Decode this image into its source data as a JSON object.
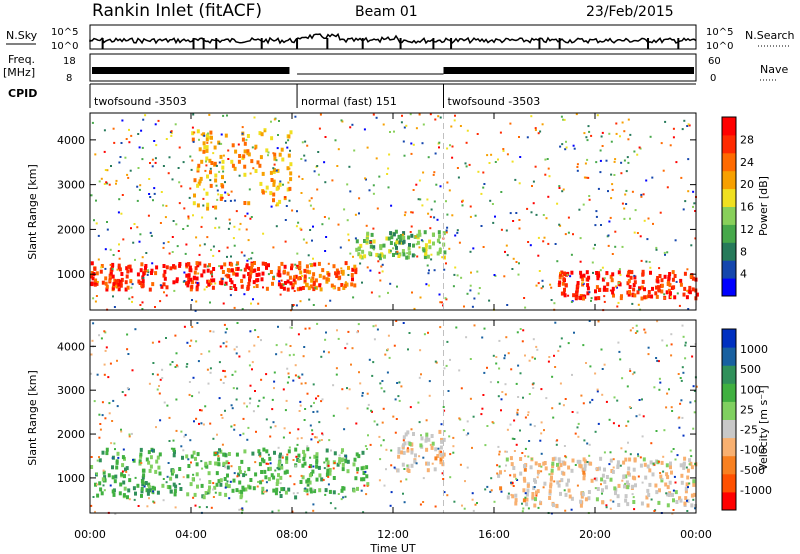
{
  "header": {
    "station": "Rankin Inlet (fitACF)",
    "beam": "Beam 01",
    "date": "23/Feb/2015"
  },
  "summary_panels": {
    "nsky_label": "N.Sky",
    "nsky_ticks": [
      "10^5",
      "10^0"
    ],
    "nsearch_label": "N.Search",
    "nsearch_ticks": [
      "10^5",
      "10^0"
    ],
    "freq_label_1": "Freq.",
    "freq_label_2": "[MHz]",
    "freq_ticks": [
      "18",
      "8"
    ],
    "nave_label": "Nave",
    "nave_ticks": [
      "60",
      "0"
    ],
    "cpid_label": "CPID",
    "cpid_segments": [
      {
        "name": "twofsound",
        "id": "-3503",
        "start": 0,
        "end": 8.2
      },
      {
        "name": "normal (fast)",
        "id": "151",
        "start": 8.2,
        "end": 14.0
      },
      {
        "name": "twofsound",
        "id": "-3503",
        "start": 14.0,
        "end": 24
      }
    ]
  },
  "chart_data": [
    {
      "type": "heatmap",
      "panel": "power",
      "title": "",
      "xlabel": "Time UT",
      "ylabel": "Slant Range [km]",
      "xlim": [
        0,
        24
      ],
      "ylim": [
        200,
        4600
      ],
      "yticks": [
        "1000",
        "2000",
        "3000",
        "4000"
      ],
      "colorbar": {
        "label": "Power [dB]",
        "ticks": [
          "28",
          "24",
          "20",
          "16",
          "12",
          "8",
          "4"
        ],
        "colors": [
          "#0000ff",
          "#1446ad",
          "#267a5a",
          "#46a84a",
          "#88d05a",
          "#f0e020",
          "#f7a000",
          "#ff6a00",
          "#ff2a00",
          "#ff0000"
        ]
      },
      "features": [
        {
          "range_km": [
            700,
            1300
          ],
          "time_ut": [
            0,
            8.2
          ],
          "level_db": 28
        },
        {
          "range_km": [
            700,
            1300
          ],
          "time_ut": [
            8.2,
            10.5
          ],
          "level_db": 24
        },
        {
          "range_km": [
            1400,
            2000
          ],
          "time_ut": [
            10.5,
            14.0
          ],
          "level_db": 12
        },
        {
          "range_km": [
            500,
            1100
          ],
          "time_ut": [
            18.5,
            24
          ],
          "level_db": 28
        },
        {
          "range_km": [
            2500,
            4300
          ],
          "time_ut": [
            4,
            8
          ],
          "level_db": 20
        }
      ]
    },
    {
      "type": "heatmap",
      "panel": "velocity",
      "title": "",
      "xlabel": "Time UT",
      "ylabel": "Slant Range [km]",
      "xlim": [
        0,
        24
      ],
      "ylim": [
        200,
        4600
      ],
      "yticks": [
        "1000",
        "2000",
        "3000",
        "4000"
      ],
      "xticks": [
        "00:00",
        "04:00",
        "08:00",
        "12:00",
        "16:00",
        "20:00",
        "00:00"
      ],
      "colorbar": {
        "label": "Velocity [m s⁻¹]",
        "ticks": [
          "1000",
          "500",
          "100",
          "25",
          "-25",
          "-100",
          "-500",
          "-1000"
        ],
        "colors": [
          "#ff0000",
          "#ff5000",
          "#f88020",
          "#f8b070",
          "#c8c8c8",
          "#80d060",
          "#40b040",
          "#30905a",
          "#1860a0",
          "#0030c0"
        ]
      },
      "features": [
        {
          "range_km": [
            600,
            1700
          ],
          "time_ut": [
            0,
            8.2
          ],
          "velocity_ms": 300
        },
        {
          "range_km": [
            700,
            1700
          ],
          "time_ut": [
            8.2,
            11
          ],
          "velocity_ms": 300
        },
        {
          "range_km": [
            1200,
            2100
          ],
          "time_ut": [
            12,
            14
          ],
          "velocity_ms": -200
        },
        {
          "range_km": [
            400,
            1500
          ],
          "time_ut": [
            16,
            24
          ],
          "velocity_ms": -200
        }
      ]
    }
  ]
}
